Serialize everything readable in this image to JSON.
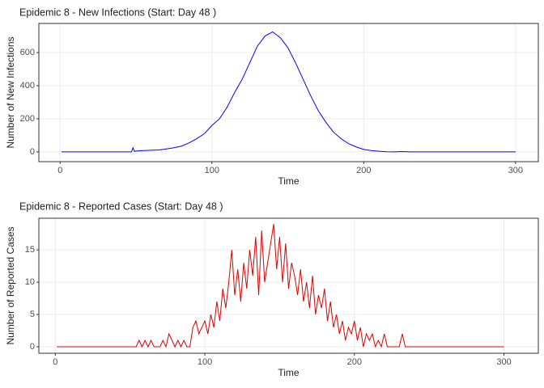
{
  "chart_data": [
    {
      "type": "line",
      "title": "Epidemic 8 - New Infections (Start: Day 48 )",
      "x_label": "Time",
      "y_label": "Number of New Infections",
      "x": [
        1,
        10,
        20,
        30,
        40,
        47,
        48,
        49,
        50,
        55,
        60,
        65,
        70,
        75,
        80,
        85,
        90,
        95,
        100,
        105,
        110,
        115,
        120,
        125,
        130,
        135,
        140,
        145,
        150,
        155,
        160,
        165,
        170,
        175,
        180,
        185,
        190,
        195,
        200,
        205,
        210,
        215,
        220,
        225,
        230,
        235,
        240,
        245,
        250,
        255,
        260,
        265,
        270,
        275,
        280,
        285,
        290,
        295,
        300
      ],
      "series": [
        {
          "name": "New Infections",
          "color": "#0000ff",
          "values": [
            0,
            0,
            0,
            0,
            0,
            0,
            25,
            3,
            5,
            8,
            10,
            12,
            18,
            25,
            35,
            55,
            80,
            110,
            160,
            200,
            270,
            360,
            440,
            540,
            640,
            700,
            725,
            690,
            630,
            540,
            440,
            340,
            250,
            180,
            120,
            80,
            50,
            30,
            15,
            8,
            4,
            1,
            0,
            2,
            0,
            0,
            0,
            0,
            0,
            0,
            0,
            0,
            0,
            0,
            0,
            0,
            0,
            0,
            0
          ]
        }
      ],
      "xlim": [
        -14,
        315
      ],
      "ylim": [
        -59,
        776
      ],
      "xticks": [
        0,
        100,
        200,
        300
      ],
      "yticks": [
        0,
        200,
        400,
        600
      ],
      "grid": true
    },
    {
      "type": "line",
      "title": "Epidemic 8 - Reported Cases (Start: Day 48 )",
      "x_label": "Time",
      "y_label": "Number of Reported Cases",
      "x": [
        1,
        50,
        52,
        54,
        56,
        58,
        60,
        62,
        64,
        66,
        68,
        70,
        72,
        74,
        76,
        78,
        80,
        82,
        84,
        86,
        88,
        90,
        92,
        94,
        96,
        98,
        100,
        102,
        104,
        106,
        108,
        110,
        112,
        114,
        116,
        118,
        120,
        122,
        124,
        126,
        128,
        130,
        132,
        134,
        136,
        138,
        140,
        142,
        144,
        146,
        148,
        150,
        152,
        154,
        156,
        158,
        160,
        162,
        164,
        166,
        168,
        170,
        172,
        174,
        176,
        178,
        180,
        182,
        184,
        186,
        188,
        190,
        192,
        194,
        196,
        198,
        200,
        202,
        204,
        206,
        208,
        210,
        212,
        214,
        216,
        218,
        220,
        222,
        224,
        226,
        228,
        230,
        232,
        234,
        236,
        240,
        300
      ],
      "series": [
        {
          "name": "Reported Cases",
          "color": "#e00000",
          "values": [
            0,
            0,
            0,
            0,
            1,
            0,
            1,
            0,
            1,
            0,
            0,
            0,
            1,
            0,
            2,
            1,
            0,
            1,
            0,
            1,
            0,
            0,
            3,
            4,
            2,
            3,
            4,
            2,
            5,
            3,
            7,
            4,
            9,
            6,
            10,
            15,
            8,
            12,
            7,
            13,
            9,
            15,
            11,
            17,
            8,
            18,
            10,
            13,
            16,
            19,
            12,
            17,
            10,
            16,
            9,
            13,
            11,
            8,
            12,
            7,
            10,
            6,
            11,
            5,
            8,
            6,
            9,
            4,
            7,
            3,
            5,
            2,
            4,
            1,
            3,
            2,
            4,
            1,
            3,
            0,
            2,
            1,
            2,
            0,
            1,
            0,
            2,
            0,
            0,
            0,
            0,
            0,
            2,
            0,
            0,
            0,
            0
          ]
        }
      ],
      "xlim": [
        -11,
        323
      ],
      "ylim": [
        -1,
        19.9
      ],
      "xticks": [
        0,
        100,
        200,
        300
      ],
      "yticks": [
        0,
        5,
        10,
        15
      ],
      "grid": true
    }
  ]
}
